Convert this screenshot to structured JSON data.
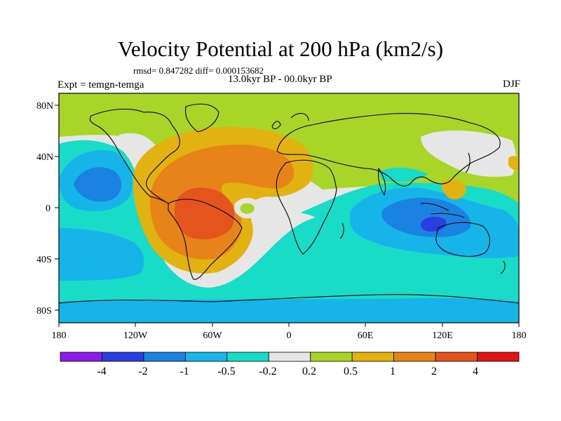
{
  "title": "Velocity Potential at 200 hPa (km2/s)",
  "stats": "rmsd= 0.847282 diff= 0.000153682",
  "period": "13.0kyr BP - 00.0kyr BP",
  "experiment": "Expt = temgn-temga",
  "season": "DJF",
  "map": {
    "x_ticks": [
      "180",
      "120W",
      "60W",
      "0",
      "60E",
      "120E",
      "180"
    ],
    "y_ticks": [
      "80N",
      "40N",
      "0",
      "40S",
      "80S"
    ]
  },
  "colorbar": {
    "labels": [
      "-4",
      "-2",
      "-1",
      "-0.5",
      "-0.2",
      "0.2",
      "0.5",
      "1",
      "2",
      "4"
    ],
    "colors": [
      "#8a1ee8",
      "#2a3fe0",
      "#1a82e0",
      "#16b4e8",
      "#19dcc8",
      "#e6e6e6",
      "#a8d528",
      "#e2b210",
      "#e6841a",
      "#e4541c",
      "#e01414"
    ]
  }
}
